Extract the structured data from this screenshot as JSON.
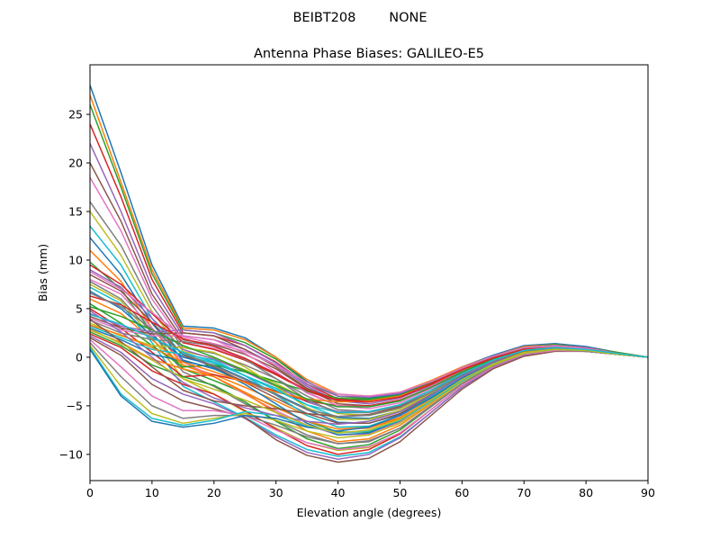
{
  "suptitle": "BEIBT208        NONE",
  "chart_data": {
    "type": "line",
    "title": "Antenna Phase Biases: GALILEO-E5",
    "xlabel": "Elevation angle (degrees)",
    "ylabel": "Bias (mm)",
    "xlim": [
      0,
      90
    ],
    "ylim": [
      -12.7,
      30.1
    ],
    "xticks": [
      0,
      10,
      20,
      30,
      40,
      50,
      60,
      70,
      80,
      90
    ],
    "xtick_labels": [
      "0",
      "10",
      "20",
      "30",
      "40",
      "50",
      "60",
      "70",
      "80",
      "90"
    ],
    "yticks": [
      -10,
      -5,
      0,
      5,
      10,
      15,
      20,
      25
    ],
    "ytick_labels": [
      "−10",
      "−5",
      "0",
      "5",
      "10",
      "15",
      "20",
      "25"
    ],
    "grid": false,
    "legend": "none",
    "palette": [
      "#1f77b4",
      "#ff7f0e",
      "#2ca02c",
      "#d62728",
      "#9467bd",
      "#8c564b",
      "#e377c2",
      "#7f7f7f",
      "#bcbd22",
      "#17becf"
    ],
    "x": [
      0,
      5,
      10,
      15,
      20,
      25,
      30,
      35,
      40,
      45,
      50,
      55,
      60,
      65,
      70,
      75,
      80,
      85,
      90
    ],
    "series": [
      {
        "values": [
          28.0,
          19.0,
          9.5,
          3.2,
          3.0,
          2.0,
          0.0,
          -2.5,
          -4.0,
          -4.2,
          -3.8,
          -2.5,
          -1.0,
          0.2,
          1.2,
          1.4,
          1.1,
          0.5,
          0.0
        ]
      },
      {
        "values": [
          27.0,
          18.0,
          9.0,
          3.0,
          2.8,
          1.8,
          0.0,
          -2.3,
          -3.8,
          -4.0,
          -3.6,
          -2.4,
          -1.0,
          0.1,
          1.1,
          1.3,
          1.0,
          0.5,
          0.0
        ]
      },
      {
        "values": [
          26.0,
          17.5,
          8.6,
          2.8,
          2.5,
          1.5,
          -0.2,
          -2.6,
          -4.0,
          -4.3,
          -3.9,
          -2.6,
          -1.1,
          0.1,
          1.0,
          1.3,
          1.0,
          0.5,
          0.0
        ]
      },
      {
        "values": [
          24.0,
          16.5,
          8.0,
          2.5,
          2.2,
          1.2,
          -0.5,
          -2.8,
          -4.3,
          -4.5,
          -4.0,
          -2.7,
          -1.2,
          0.0,
          1.0,
          1.2,
          1.0,
          0.4,
          0.0
        ]
      },
      {
        "values": [
          22.0,
          15.0,
          7.2,
          2.2,
          1.8,
          0.8,
          -0.8,
          -3.0,
          -4.5,
          -4.8,
          -4.2,
          -2.9,
          -1.3,
          0.0,
          0.9,
          1.2,
          0.9,
          0.4,
          0.0
        ]
      },
      {
        "values": [
          20.0,
          14.0,
          6.5,
          1.8,
          1.3,
          0.3,
          -1.2,
          -3.3,
          -4.8,
          -5.0,
          -4.5,
          -3.0,
          -1.4,
          -0.1,
          0.9,
          1.1,
          0.9,
          0.4,
          0.0
        ]
      },
      {
        "values": [
          18.5,
          13.0,
          6.0,
          1.5,
          0.9,
          -0.2,
          -1.6,
          -3.6,
          -5.0,
          -5.3,
          -4.7,
          -3.2,
          -1.5,
          -0.2,
          0.8,
          1.1,
          0.9,
          0.4,
          0.0
        ]
      },
      {
        "values": [
          16.0,
          11.5,
          5.3,
          1.0,
          0.4,
          -0.8,
          -2.2,
          -4.0,
          -5.4,
          -5.6,
          -5.0,
          -3.4,
          -1.6,
          -0.2,
          0.8,
          1.0,
          0.8,
          0.4,
          0.0
        ]
      },
      {
        "values": [
          15.0,
          10.5,
          4.7,
          0.6,
          -0.1,
          -1.3,
          -2.7,
          -4.4,
          -5.8,
          -6.0,
          -5.3,
          -3.6,
          -1.8,
          -0.3,
          0.7,
          1.0,
          0.8,
          0.4,
          0.0
        ]
      },
      {
        "values": [
          13.5,
          9.5,
          4.0,
          0.2,
          -0.6,
          -1.9,
          -3.2,
          -4.9,
          -6.2,
          -6.4,
          -5.6,
          -3.9,
          -1.9,
          -0.4,
          0.6,
          0.9,
          0.8,
          0.4,
          0.0
        ]
      },
      {
        "values": [
          12.3,
          8.5,
          3.5,
          -0.3,
          -1.2,
          -2.5,
          -3.8,
          -5.4,
          -6.7,
          -6.8,
          -5.9,
          -4.1,
          -2.1,
          -0.5,
          0.5,
          0.9,
          0.7,
          0.3,
          0.0
        ]
      },
      {
        "values": [
          11.0,
          7.8,
          3.0,
          -0.8,
          -1.8,
          -3.1,
          -4.5,
          -6.0,
          -7.2,
          -7.2,
          -6.2,
          -4.4,
          -2.3,
          -0.6,
          0.5,
          0.8,
          0.7,
          0.3,
          0.0
        ]
      },
      {
        "values": [
          9.8,
          7.0,
          2.5,
          -1.2,
          -2.4,
          -3.7,
          -5.1,
          -6.6,
          -7.7,
          -7.7,
          -6.6,
          -4.6,
          -2.5,
          -0.7,
          0.4,
          0.8,
          0.7,
          0.3,
          0.0
        ]
      },
      {
        "values": [
          9.5,
          7.5,
          4.5,
          1.5,
          0.8,
          -0.3,
          -1.8,
          -3.5,
          -4.5,
          -4.6,
          -4.0,
          -2.8,
          -1.3,
          -0.1,
          0.8,
          1.0,
          0.8,
          0.4,
          0.0
        ]
      },
      {
        "values": [
          9.0,
          7.2,
          4.0,
          0.8,
          -0.2,
          -1.5,
          -3.0,
          -4.6,
          -5.6,
          -5.6,
          -4.9,
          -3.4,
          -1.7,
          -0.3,
          0.7,
          0.9,
          0.8,
          0.4,
          0.0
        ]
      },
      {
        "values": [
          8.5,
          6.8,
          3.6,
          0.2,
          -1.0,
          -2.6,
          -4.2,
          -5.8,
          -6.8,
          -6.8,
          -5.8,
          -4.0,
          -2.0,
          -0.5,
          0.6,
          0.9,
          0.7,
          0.3,
          0.0
        ]
      },
      {
        "values": [
          8.0,
          6.5,
          3.0,
          -0.5,
          -2.0,
          -3.8,
          -5.5,
          -7.0,
          -8.0,
          -7.9,
          -6.7,
          -4.6,
          -2.4,
          -0.7,
          0.5,
          0.8,
          0.7,
          0.3,
          0.0
        ]
      },
      {
        "values": [
          7.8,
          6.0,
          2.5,
          -1.5,
          -3.0,
          -4.8,
          -6.5,
          -8.0,
          -8.9,
          -8.7,
          -7.3,
          -5.0,
          -2.7,
          -0.9,
          0.4,
          0.8,
          0.7,
          0.3,
          0.0
        ]
      },
      {
        "values": [
          7.5,
          5.8,
          2.0,
          -2.2,
          -3.8,
          -5.6,
          -7.3,
          -8.8,
          -9.6,
          -9.3,
          -7.8,
          -5.4,
          -2.9,
          -1.0,
          0.3,
          0.7,
          0.6,
          0.3,
          0.0
        ]
      },
      {
        "values": [
          7.2,
          5.5,
          1.5,
          -3.0,
          -4.6,
          -6.2,
          -8.0,
          -9.5,
          -10.2,
          -9.8,
          -8.2,
          -5.7,
          -3.1,
          -1.1,
          0.2,
          0.7,
          0.6,
          0.3,
          0.0
        ]
      },
      {
        "values": [
          6.8,
          5.0,
          2.2,
          0.0,
          -0.8,
          -2.2,
          -3.8,
          -5.3,
          -6.2,
          -6.3,
          -5.5,
          -3.8,
          -1.9,
          -0.4,
          0.6,
          0.9,
          0.7,
          0.3,
          0.0
        ]
      },
      {
        "values": [
          6.0,
          4.5,
          1.8,
          -0.8,
          -2.0,
          -3.6,
          -5.2,
          -6.6,
          -7.4,
          -7.3,
          -6.3,
          -4.3,
          -2.2,
          -0.6,
          0.5,
          0.8,
          0.7,
          0.3,
          0.0
        ]
      },
      {
        "values": [
          5.5,
          3.5,
          1.2,
          -1.0,
          -0.8,
          -1.5,
          -2.5,
          -3.5,
          -4.2,
          -4.4,
          -4.0,
          -2.8,
          -1.3,
          -0.1,
          0.8,
          1.0,
          0.8,
          0.4,
          0.0
        ]
      },
      {
        "values": [
          5.0,
          3.0,
          0.5,
          -2.0,
          -1.8,
          -2.5,
          -3.5,
          -4.5,
          -5.0,
          -5.0,
          -4.4,
          -3.1,
          -1.5,
          -0.2,
          0.7,
          0.9,
          0.8,
          0.4,
          0.0
        ]
      },
      {
        "values": [
          4.5,
          3.2,
          2.6,
          2.8,
          2.5,
          1.2,
          -0.6,
          -2.8,
          -4.0,
          -4.1,
          -3.7,
          -2.5,
          -1.1,
          0.1,
          1.0,
          1.2,
          1.0,
          0.4,
          0.0
        ]
      },
      {
        "values": [
          4.2,
          3.0,
          2.4,
          2.5,
          2.2,
          0.8,
          -1.0,
          -3.2,
          -4.5,
          -4.6,
          -4.1,
          -2.8,
          -1.3,
          0.0,
          0.9,
          1.1,
          0.9,
          0.4,
          0.0
        ]
      },
      {
        "values": [
          4.0,
          2.8,
          2.2,
          2.2,
          1.8,
          0.4,
          -1.5,
          -3.7,
          -5.0,
          -5.1,
          -4.5,
          -3.0,
          -1.4,
          -0.1,
          0.8,
          1.1,
          0.9,
          0.4,
          0.0
        ]
      },
      {
        "values": [
          3.8,
          2.5,
          1.8,
          1.6,
          1.2,
          -0.2,
          -2.2,
          -4.4,
          -5.7,
          -5.7,
          -5.0,
          -3.4,
          -1.6,
          -0.2,
          0.8,
          1.0,
          0.8,
          0.4,
          0.0
        ]
      },
      {
        "values": [
          3.5,
          2.2,
          1.2,
          1.0,
          0.5,
          -1.0,
          -3.0,
          -5.2,
          -6.4,
          -6.4,
          -5.5,
          -3.7,
          -1.8,
          -0.3,
          0.7,
          1.0,
          0.8,
          0.4,
          0.0
        ]
      },
      {
        "values": [
          3.2,
          2.0,
          0.8,
          0.3,
          -0.3,
          -1.9,
          -3.9,
          -6.0,
          -7.2,
          -7.1,
          -6.0,
          -4.1,
          -2.0,
          -0.4,
          0.6,
          0.9,
          0.8,
          0.3,
          0.0
        ]
      },
      {
        "values": [
          3.0,
          1.8,
          0.3,
          -0.4,
          -1.1,
          -2.8,
          -4.8,
          -6.8,
          -8.0,
          -7.8,
          -6.5,
          -4.4,
          -2.2,
          -0.6,
          0.5,
          0.9,
          0.7,
          0.3,
          0.0
        ]
      },
      {
        "values": [
          2.8,
          1.5,
          -0.2,
          -1.2,
          -2.0,
          -3.7,
          -5.7,
          -7.6,
          -8.7,
          -8.4,
          -7.0,
          -4.8,
          -2.5,
          -0.7,
          0.5,
          0.8,
          0.7,
          0.3,
          0.0
        ]
      },
      {
        "values": [
          2.6,
          1.2,
          -0.8,
          -2.0,
          -2.9,
          -4.6,
          -6.6,
          -8.4,
          -9.4,
          -9.0,
          -7.5,
          -5.1,
          -2.7,
          -0.9,
          0.4,
          0.8,
          0.6,
          0.3,
          0.0
        ]
      },
      {
        "values": [
          2.4,
          1.0,
          -1.4,
          -2.8,
          -3.8,
          -5.5,
          -7.4,
          -9.1,
          -10.0,
          -9.5,
          -7.9,
          -5.4,
          -2.9,
          -1.0,
          0.3,
          0.7,
          0.6,
          0.3,
          0.0
        ]
      },
      {
        "values": [
          2.2,
          0.5,
          -2.2,
          -3.8,
          -4.8,
          -6.3,
          -8.2,
          -9.8,
          -10.5,
          -10.0,
          -8.3,
          -5.7,
          -3.1,
          -1.1,
          0.2,
          0.7,
          0.6,
          0.3,
          0.0
        ]
      },
      {
        "values": [
          2.0,
          0.2,
          -2.8,
          -4.5,
          -5.3,
          -6.2,
          -8.5,
          -10.1,
          -10.8,
          -10.4,
          -8.7,
          -6.0,
          -3.3,
          -1.2,
          0.1,
          0.6,
          0.6,
          0.3,
          0.0
        ]
      },
      {
        "values": [
          1.8,
          -1.0,
          -4.0,
          -5.5,
          -5.5,
          -6.0,
          -7.5,
          -8.8,
          -9.5,
          -9.2,
          -7.8,
          -5.4,
          -2.9,
          -1.0,
          0.3,
          0.7,
          0.6,
          0.3,
          0.0
        ]
      },
      {
        "values": [
          1.5,
          -2.0,
          -5.0,
          -6.3,
          -6.0,
          -6.0,
          -7.0,
          -8.2,
          -8.9,
          -8.6,
          -7.3,
          -5.1,
          -2.7,
          -0.9,
          0.4,
          0.8,
          0.6,
          0.3,
          0.0
        ]
      },
      {
        "values": [
          1.2,
          -3.0,
          -5.8,
          -6.8,
          -6.3,
          -5.8,
          -6.5,
          -7.6,
          -8.3,
          -8.0,
          -6.8,
          -4.7,
          -2.5,
          -0.8,
          0.4,
          0.8,
          0.7,
          0.3,
          0.0
        ]
      },
      {
        "values": [
          1.0,
          -3.8,
          -6.3,
          -7.0,
          -6.5,
          -5.6,
          -6.0,
          -7.1,
          -7.8,
          -7.6,
          -6.5,
          -4.5,
          -2.4,
          -0.7,
          0.5,
          0.8,
          0.7,
          0.3,
          0.0
        ]
      },
      {
        "values": [
          0.8,
          -4.0,
          -6.6,
          -7.2,
          -6.8,
          -6.0,
          -6.3,
          -7.2,
          -7.6,
          -7.2,
          -6.0,
          -4.2,
          -2.2,
          -0.6,
          0.5,
          0.9,
          0.7,
          0.3,
          0.0
        ]
      },
      {
        "values": [
          3.3,
          2.3,
          1.0,
          -0.5,
          -1.5,
          -2.6,
          -3.6,
          -4.3,
          -4.6,
          -4.5,
          -4.0,
          -2.8,
          -1.3,
          -0.1,
          0.8,
          1.0,
          0.8,
          0.4,
          0.0
        ]
      },
      {
        "values": [
          5.2,
          4.2,
          2.8,
          1.2,
          0.0,
          -1.4,
          -2.9,
          -4.3,
          -5.1,
          -5.1,
          -4.5,
          -3.1,
          -1.5,
          -0.2,
          0.7,
          1.0,
          0.8,
          0.4,
          0.0
        ]
      },
      {
        "values": [
          6.3,
          5.4,
          3.6,
          1.9,
          1.1,
          -0.1,
          -1.7,
          -3.4,
          -4.4,
          -4.6,
          -4.1,
          -2.8,
          -1.3,
          -0.1,
          0.8,
          1.0,
          0.8,
          0.4,
          0.0
        ]
      },
      {
        "values": [
          4.8,
          2.6,
          0.0,
          -2.6,
          -4.2,
          -5.2,
          -6.0,
          -6.6,
          -6.9,
          -6.6,
          -5.6,
          -3.9,
          -2.0,
          -0.5,
          0.6,
          0.9,
          0.7,
          0.3,
          0.0
        ]
      },
      {
        "values": [
          3.9,
          1.6,
          -1.0,
          -3.4,
          -4.5,
          -5.0,
          -5.3,
          -5.8,
          -6.1,
          -5.9,
          -5.1,
          -3.6,
          -1.8,
          -0.4,
          0.6,
          0.9,
          0.7,
          0.3,
          0.0
        ]
      },
      {
        "values": [
          8.8,
          7.0,
          4.6,
          2.1,
          1.4,
          0.6,
          -0.8,
          -2.6,
          -3.8,
          -4.0,
          -3.6,
          -2.5,
          -1.1,
          0.1,
          1.0,
          1.2,
          0.9,
          0.4,
          0.0
        ]
      },
      {
        "values": [
          6.6,
          5.2,
          2.9,
          0.4,
          -0.9,
          -2.3,
          -3.9,
          -5.4,
          -6.1,
          -6.0,
          -5.2,
          -3.6,
          -1.8,
          -0.4,
          0.7,
          0.9,
          0.8,
          0.3,
          0.0
        ]
      },
      {
        "values": [
          2.9,
          1.4,
          -0.3,
          -2.2,
          -3.3,
          -4.4,
          -5.7,
          -7.0,
          -7.8,
          -7.5,
          -6.4,
          -4.4,
          -2.3,
          -0.7,
          0.5,
          0.8,
          0.7,
          0.3,
          0.0
        ]
      },
      {
        "values": [
          4.4,
          3.4,
          2.0,
          0.5,
          -0.5,
          -1.9,
          -3.4,
          -4.9,
          -5.7,
          -5.6,
          -4.9,
          -3.4,
          -1.7,
          -0.3,
          0.7,
          1.0,
          0.8,
          0.4,
          0.0
        ]
      }
    ]
  }
}
